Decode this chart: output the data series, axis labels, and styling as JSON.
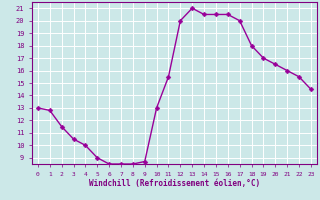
{
  "x": [
    0,
    1,
    2,
    3,
    4,
    5,
    6,
    7,
    8,
    9,
    10,
    11,
    12,
    13,
    14,
    15,
    16,
    17,
    18,
    19,
    20,
    21,
    22,
    23
  ],
  "y": [
    13.0,
    12.8,
    11.5,
    10.5,
    10.0,
    9.0,
    8.5,
    8.5,
    8.5,
    8.7,
    13.0,
    15.5,
    20.0,
    21.0,
    20.5,
    20.5,
    20.5,
    20.0,
    18.0,
    17.0,
    16.5,
    16.0,
    15.5,
    14.5
  ],
  "line_color": "#990099",
  "marker_color": "#990099",
  "bg_color": "#cce8e8",
  "grid_color": "#ffffff",
  "xlabel": "Windchill (Refroidissement éolien,°C)",
  "xlabel_color": "#800080",
  "tick_color": "#800080",
  "ylim": [
    8.5,
    21.5
  ],
  "xlim": [
    -0.5,
    23.5
  ],
  "yticks": [
    9,
    10,
    11,
    12,
    13,
    14,
    15,
    16,
    17,
    18,
    19,
    20,
    21
  ],
  "xticks": [
    0,
    1,
    2,
    3,
    4,
    5,
    6,
    7,
    8,
    9,
    10,
    11,
    12,
    13,
    14,
    15,
    16,
    17,
    18,
    19,
    20,
    21,
    22,
    23
  ],
  "line_width": 1.0,
  "marker_size": 2.5
}
